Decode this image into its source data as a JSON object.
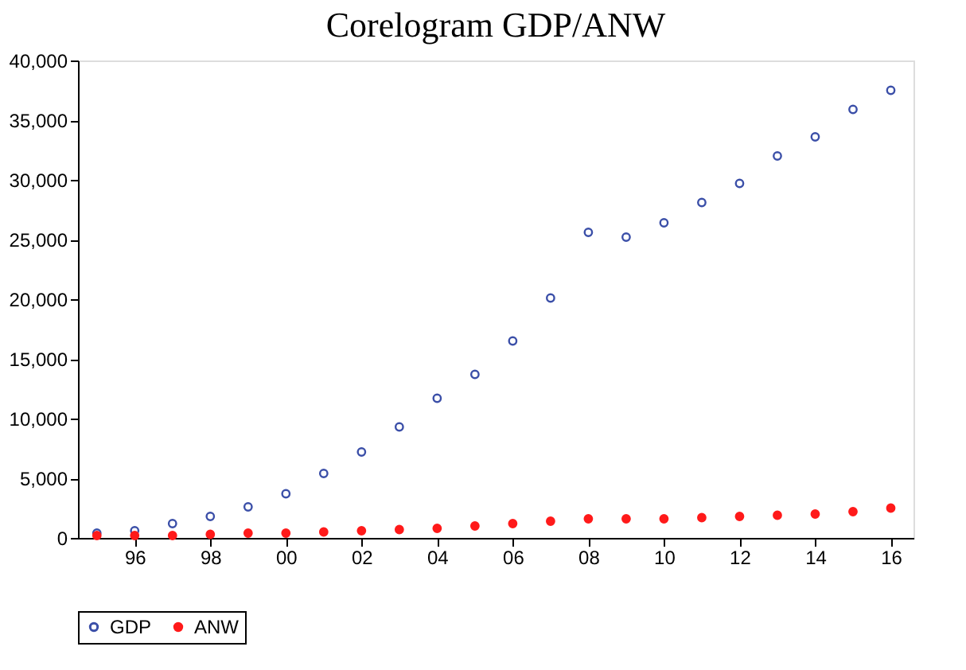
{
  "chart_data": {
    "type": "scatter",
    "title": "Corelogram GDP/ANW",
    "x": [
      1995,
      1996,
      1997,
      1998,
      1999,
      2000,
      2001,
      2002,
      2003,
      2004,
      2005,
      2006,
      2007,
      2008,
      2009,
      2010,
      2011,
      2012,
      2013,
      2014,
      2015,
      2016
    ],
    "series": [
      {
        "name": "GDP",
        "color": "#3b4fa8",
        "values": [
          400,
          600,
          1200,
          1800,
          2600,
          3700,
          5400,
          7200,
          9300,
          11700,
          13700,
          16500,
          20100,
          25600,
          25200,
          26400,
          28100,
          29700,
          32000,
          33600,
          35900,
          37500
        ]
      },
      {
        "name": "ANW",
        "color": "#ff1a1a",
        "values": [
          200,
          200,
          200,
          300,
          400,
          400,
          500,
          600,
          700,
          800,
          1000,
          1200,
          1400,
          1600,
          1600,
          1600,
          1700,
          1800,
          1900,
          2000,
          2200,
          2500
        ]
      }
    ],
    "xlim": [
      1994.5,
      2016.6
    ],
    "xticks": [
      {
        "value": 1996,
        "label": "96"
      },
      {
        "value": 1998,
        "label": "98"
      },
      {
        "value": 2000,
        "label": "00"
      },
      {
        "value": 2002,
        "label": "02"
      },
      {
        "value": 2004,
        "label": "04"
      },
      {
        "value": 2006,
        "label": "06"
      },
      {
        "value": 2008,
        "label": "08"
      },
      {
        "value": 2010,
        "label": "10"
      },
      {
        "value": 2012,
        "label": "12"
      },
      {
        "value": 2014,
        "label": "14"
      },
      {
        "value": 2016,
        "label": "16"
      }
    ],
    "ylim": [
      0,
      40000
    ],
    "yticks": [
      0,
      {
        "value": 5000,
        "label": "5,000"
      },
      {
        "value": 10000,
        "label": "10,000"
      },
      {
        "value": 15000,
        "label": "15,000"
      },
      {
        "value": 20000,
        "label": "20,000"
      },
      {
        "value": 25000,
        "label": "25,000"
      },
      {
        "value": 30000,
        "label": "30,000"
      },
      {
        "value": 35000,
        "label": "35,000"
      },
      {
        "value": 40000,
        "label": "40,000"
      }
    ],
    "grid": false,
    "legend": "bottom",
    "marker": "circle"
  }
}
